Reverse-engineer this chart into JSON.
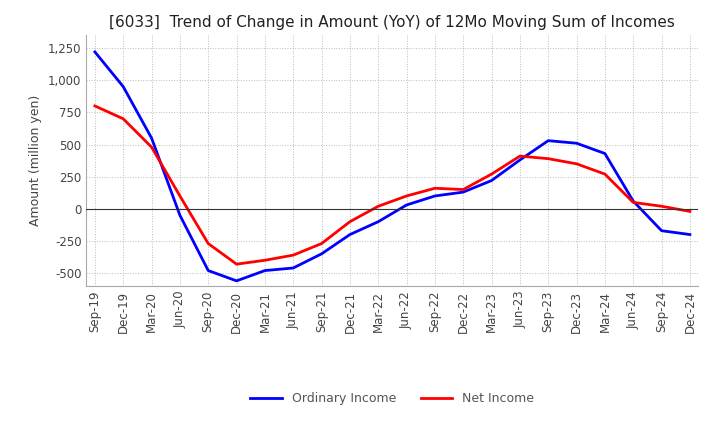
{
  "title": "[6033]  Trend of Change in Amount (YoY) of 12Mo Moving Sum of Incomes",
  "ylabel": "Amount (million yen)",
  "background_color": "#ffffff",
  "grid_color": "#bbbbbb",
  "x_labels": [
    "Sep-19",
    "Dec-19",
    "Mar-20",
    "Jun-20",
    "Sep-20",
    "Dec-20",
    "Mar-21",
    "Jun-21",
    "Sep-21",
    "Dec-21",
    "Mar-22",
    "Jun-22",
    "Sep-22",
    "Dec-22",
    "Mar-23",
    "Jun-23",
    "Sep-23",
    "Dec-23",
    "Mar-24",
    "Jun-24",
    "Sep-24",
    "Dec-24"
  ],
  "ordinary_income": [
    1220,
    950,
    550,
    -50,
    -480,
    -560,
    -480,
    -460,
    -350,
    -200,
    -100,
    30,
    100,
    130,
    220,
    380,
    530,
    510,
    430,
    60,
    -170,
    -200
  ],
  "net_income": [
    800,
    700,
    480,
    100,
    -270,
    -430,
    -400,
    -360,
    -270,
    -100,
    20,
    100,
    160,
    150,
    270,
    410,
    390,
    350,
    270,
    50,
    20,
    -20
  ],
  "ylim": [
    -600,
    1350
  ],
  "yticks": [
    -500,
    -250,
    0,
    250,
    500,
    750,
    1000,
    1250
  ],
  "ordinary_color": "#0000ff",
  "net_color": "#ff0000",
  "line_width": 2.0,
  "legend_text_color": "#555555",
  "title_fontsize": 11,
  "tick_fontsize": 8.5,
  "ylabel_fontsize": 9
}
